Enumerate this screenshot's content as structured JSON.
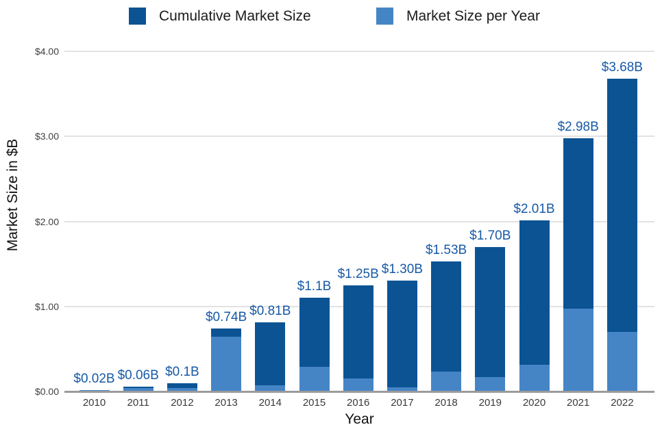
{
  "chart_data": {
    "type": "bar",
    "variant": "cumulative-overlay",
    "title": "",
    "xlabel": "Year",
    "ylabel": "Market Size in $B",
    "categories": [
      "2010",
      "2011",
      "2012",
      "2013",
      "2014",
      "2015",
      "2016",
      "2017",
      "2018",
      "2019",
      "2020",
      "2021",
      "2022"
    ],
    "series": [
      {
        "name": "Cumulative Market Size",
        "color": "#0C5394",
        "values": [
          0.02,
          0.06,
          0.1,
          0.74,
          0.81,
          1.1,
          1.25,
          1.3,
          1.53,
          1.7,
          2.01,
          2.98,
          3.68
        ]
      },
      {
        "name": "Market Size per Year",
        "color": "#4585C6",
        "values": [
          0.02,
          0.04,
          0.04,
          0.64,
          0.07,
          0.29,
          0.15,
          0.05,
          0.23,
          0.17,
          0.31,
          0.97,
          0.7
        ]
      }
    ],
    "bar_labels": [
      "$0.02B",
      "$0.06B",
      "$0.1B",
      "$0.74B",
      "$0.81B",
      "$1.1B",
      "$1.25B",
      "$1.30B",
      "$1.53B",
      "$1.70B",
      "$2.01B",
      "$2.98B",
      "$3.68B"
    ],
    "y_ticks": [
      {
        "label": "$4.00",
        "value": 4
      },
      {
        "label": "$3.00",
        "value": 3
      },
      {
        "label": "$2.00",
        "value": 2
      },
      {
        "label": "$1.00",
        "value": 1
      },
      {
        "label": "$0.00",
        "value": 0
      }
    ],
    "ylim": [
      0,
      4
    ],
    "grid": "horizontal",
    "legend_position": "top",
    "colors": {
      "bar_label": "#1659A6",
      "grid": "#E2E2E2",
      "axis_line": "#9B9B9B",
      "tick_text": "#404040",
      "axis_title": "#111111"
    }
  }
}
